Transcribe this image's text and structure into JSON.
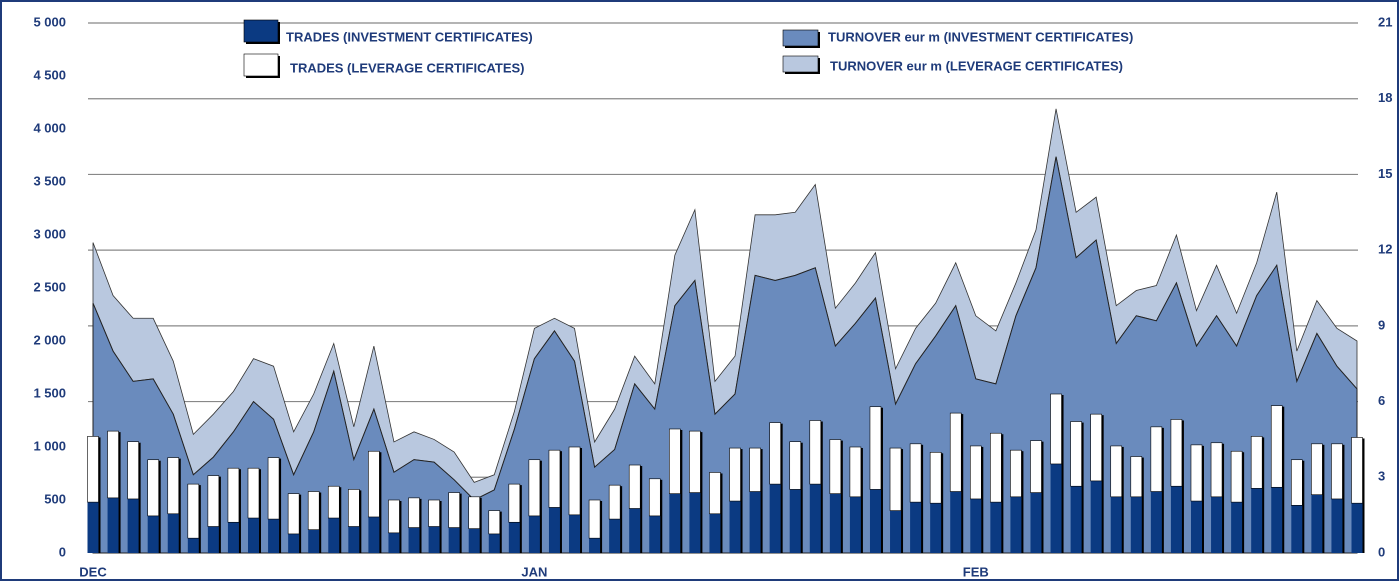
{
  "chart_data": {
    "type": "bar-area",
    "categories": [
      "DEC",
      null,
      null,
      null,
      null,
      null,
      null,
      null,
      null,
      null,
      null,
      null,
      null,
      null,
      null,
      null,
      null,
      null,
      null,
      null,
      null,
      null,
      "JAN",
      null,
      null,
      null,
      null,
      null,
      null,
      null,
      null,
      null,
      null,
      null,
      null,
      null,
      null,
      null,
      null,
      null,
      null,
      null,
      null,
      null,
      "FEB",
      null,
      null,
      null,
      null,
      null,
      null,
      null,
      null,
      null,
      null,
      null,
      null,
      null,
      null,
      null,
      null,
      null,
      null,
      null
    ],
    "series": [
      {
        "name": "TRADES (INVESTMENT CERTIFICATES)",
        "color": "#0b3a82",
        "kind": "bar",
        "values": [
          480,
          520,
          510,
          350,
          370,
          140,
          250,
          290,
          330,
          320,
          180,
          220,
          330,
          250,
          340,
          190,
          240,
          250,
          240,
          230,
          180,
          290,
          350,
          430,
          360,
          140,
          320,
          420,
          350,
          560,
          570,
          370,
          490,
          580,
          650,
          600,
          650,
          560,
          530,
          600,
          400,
          480,
          470,
          580,
          510,
          480,
          530,
          570,
          840,
          630,
          680,
          530,
          530,
          580,
          630,
          490,
          530,
          480,
          610,
          620,
          450,
          550,
          510,
          470
        ]
      },
      {
        "name": "TRADES (LEVERAGE CERTIFICATES)",
        "color": "#ffffff",
        "kind": "bar",
        "values": [
          620,
          630,
          540,
          530,
          530,
          510,
          480,
          510,
          470,
          580,
          380,
          360,
          300,
          350,
          620,
          310,
          280,
          250,
          330,
          300,
          220,
          360,
          530,
          540,
          640,
          360,
          320,
          410,
          350,
          610,
          580,
          390,
          500,
          410,
          580,
          450,
          600,
          510,
          470,
          780,
          590,
          550,
          480,
          740,
          500,
          650,
          440,
          490,
          660,
          610,
          630,
          480,
          380,
          610,
          630,
          530,
          510,
          480,
          490,
          770,
          430,
          480,
          520,
          620
        ]
      },
      {
        "name": "TURNOVER eur m (INVESTMENT CERTIFICATES)",
        "color": "#6a8bbd",
        "kind": "area",
        "axis": "y2",
        "values": [
          9.9,
          8.0,
          6.8,
          6.9,
          5.5,
          3.1,
          3.8,
          4.8,
          6.0,
          5.3,
          3.1,
          4.8,
          7.2,
          3.7,
          5.7,
          3.2,
          3.7,
          3.6,
          2.9,
          2.1,
          2.5,
          4.9,
          7.7,
          8.8,
          7.6,
          3.4,
          4.1,
          6.7,
          5.7,
          9.8,
          10.8,
          5.5,
          6.3,
          11.0,
          10.8,
          11.0,
          11.3,
          8.2,
          9.1,
          10.1,
          5.9,
          7.5,
          8.6,
          9.8,
          6.9,
          6.7,
          9.4,
          11.3,
          15.7,
          11.7,
          12.4,
          8.3,
          9.4,
          9.2,
          10.7,
          8.2,
          9.4,
          8.2,
          10.2,
          11.4,
          6.8,
          8.7,
          7.4,
          6.5
        ]
      },
      {
        "name": "TURNOVER  eur m (LEVERAGE CERTIFICATES)",
        "color": "#b9c8df",
        "kind": "area",
        "axis": "y2",
        "values": [
          2.4,
          2.2,
          2.5,
          2.4,
          2.1,
          1.6,
          1.7,
          1.6,
          1.7,
          2.1,
          1.7,
          1.5,
          1.1,
          1.3,
          2.5,
          1.2,
          1.1,
          0.9,
          1.1,
          0.7,
          0.6,
          0.7,
          1.2,
          0.5,
          1.3,
          1.0,
          1.6,
          1.1,
          1.0,
          2.0,
          2.8,
          1.3,
          1.5,
          2.4,
          2.6,
          2.5,
          3.3,
          1.5,
          1.6,
          1.8,
          1.4,
          1.4,
          1.3,
          1.7,
          2.5,
          2.1,
          1.3,
          1.5,
          1.9,
          1.8,
          1.7,
          1.5,
          1.0,
          1.4,
          1.9,
          1.4,
          2.0,
          1.3,
          1.3,
          2.9,
          1.2,
          1.3,
          1.5,
          1.9
        ]
      }
    ],
    "ylim": [
      0,
      5000
    ],
    "yticks": [
      0,
      500,
      {
        "value": 1000,
        "label": "1 000"
      },
      {
        "value": 1500,
        "label": "1 500"
      },
      {
        "value": 2000,
        "label": "2 000"
      },
      {
        "value": 2500,
        "label": "2 500"
      },
      {
        "value": 3000,
        "label": "3 000"
      },
      {
        "value": 3500,
        "label": "3 500"
      },
      {
        "value": 4000,
        "label": "4 000"
      },
      {
        "value": 4500,
        "label": "4 500"
      },
      {
        "value": 5000,
        "label": "5 000"
      }
    ],
    "y2lim": [
      0,
      21
    ],
    "y2ticks": [
      0,
      3,
      6,
      9,
      12,
      15,
      18,
      21
    ],
    "grid": true
  }
}
